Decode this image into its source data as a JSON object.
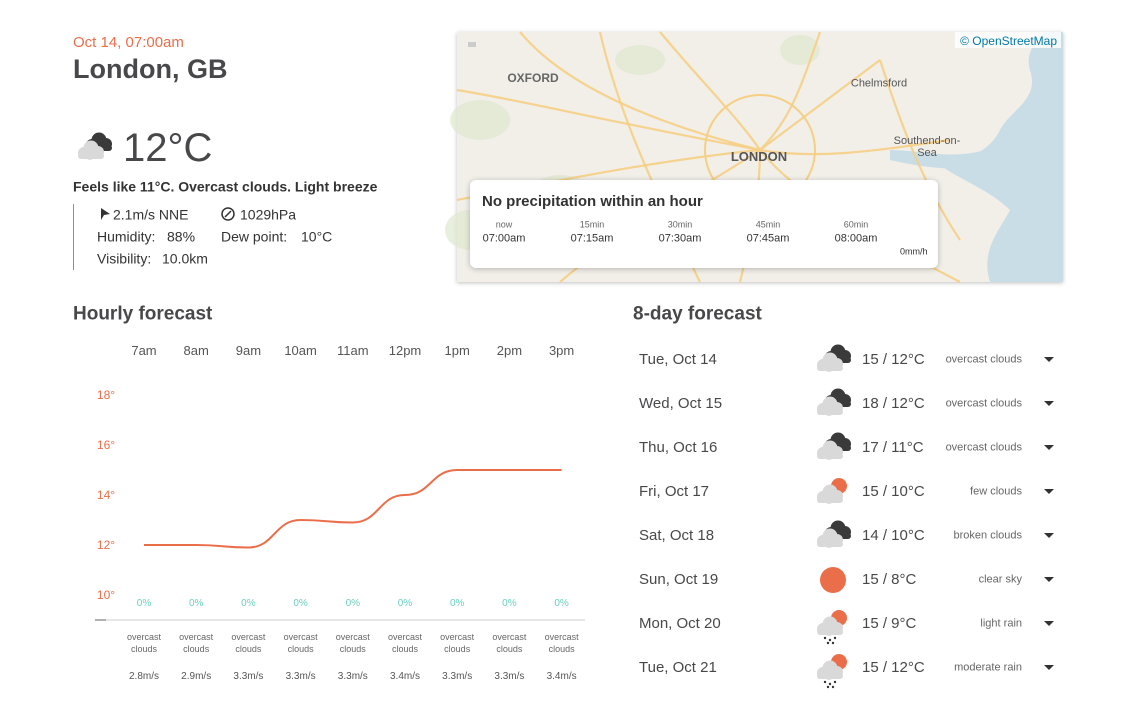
{
  "header": {
    "datetime": "Oct 14, 07:00am",
    "location": "London, GB"
  },
  "current": {
    "temperature": "12°C",
    "summary": "Feels like 11°C. Overcast clouds. Light breeze",
    "wind": "2.1m/s NNE",
    "pressure": "1029hPa",
    "humidity_label": "Humidity:",
    "humidity": "88%",
    "dew_point_label": "Dew point:",
    "dew_point": "10°C",
    "visibility_label": "Visibility:",
    "visibility": "10.0km"
  },
  "map": {
    "attribution": "© OpenStreetMap",
    "places": [
      "OXFORD",
      "Chelmsford",
      "LONDON",
      "Southend-on-Sea"
    ],
    "precipitation": {
      "title": "No precipitation within an hour",
      "offsets": [
        "now",
        "15min",
        "30min",
        "45min",
        "60min"
      ],
      "times": [
        "07:00am",
        "07:15am",
        "07:30am",
        "07:45am",
        "08:00am"
      ],
      "unit": "0mm/h"
    }
  },
  "chart_data": {
    "type": "line",
    "title": "Hourly forecast",
    "categories": [
      "7am",
      "8am",
      "9am",
      "10am",
      "11am",
      "12pm",
      "1pm",
      "2pm",
      "3pm"
    ],
    "values": [
      12,
      12,
      11.9,
      13,
      12.9,
      14,
      15,
      15,
      15
    ],
    "color": "#eb6e4b",
    "ylim": [
      9,
      18.6
    ],
    "yticks": [
      {
        "value": 10,
        "label": "10°"
      },
      {
        "value": 12,
        "label": "12°"
      },
      {
        "value": 14,
        "label": "14°"
      },
      {
        "value": 16,
        "label": "16°"
      },
      {
        "value": 18,
        "label": "18°"
      }
    ],
    "grid": false
  },
  "hourly": {
    "precipitation": [
      "0%",
      "0%",
      "0%",
      "0%",
      "0%",
      "0%",
      "0%",
      "0%",
      "0%"
    ],
    "descriptions": [
      "overcast clouds",
      "overcast clouds",
      "overcast clouds",
      "overcast clouds",
      "overcast clouds",
      "overcast clouds",
      "overcast clouds",
      "overcast clouds",
      "overcast clouds"
    ],
    "wind": [
      "2.8m/s",
      "2.9m/s",
      "3.3m/s",
      "3.3m/s",
      "3.3m/s",
      "3.4m/s",
      "3.3m/s",
      "3.3m/s",
      "3.4m/s"
    ]
  },
  "daily": {
    "title": "8-day forecast",
    "rows": [
      {
        "date": "Tue, Oct 14",
        "temperature": "15 / 12°C",
        "description": "overcast clouds"
      },
      {
        "date": "Wed, Oct 15",
        "temperature": "18 / 12°C",
        "description": "overcast clouds"
      },
      {
        "date": "Thu, Oct 16",
        "temperature": "17 / 11°C",
        "description": "overcast clouds"
      },
      {
        "date": "Fri, Oct 17",
        "temperature": "15 / 10°C",
        "description": "few clouds"
      },
      {
        "date": "Sat, Oct 18",
        "temperature": "14 / 10°C",
        "description": "broken clouds"
      },
      {
        "date": "Sun, Oct 19",
        "temperature": "15 / 8°C",
        "description": "clear sky"
      },
      {
        "date": "Mon, Oct 20",
        "temperature": "15 / 9°C",
        "description": "light rain"
      },
      {
        "date": "Tue, Oct 21",
        "temperature": "15 / 12°C",
        "description": "moderate rain"
      }
    ]
  }
}
